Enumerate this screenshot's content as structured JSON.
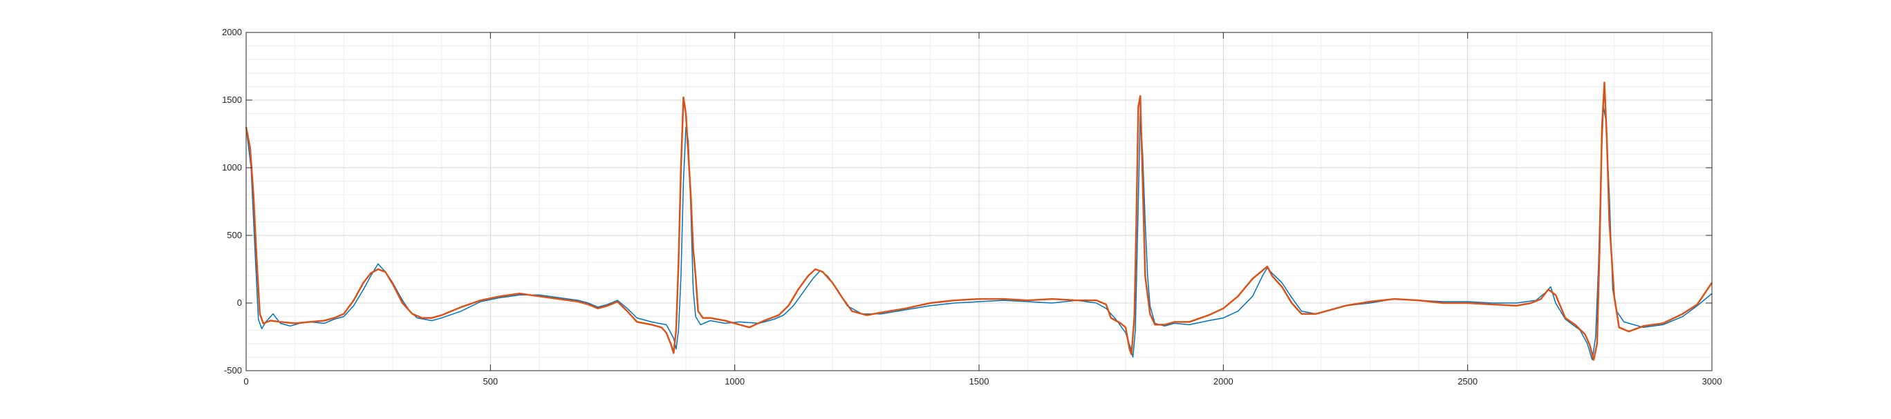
{
  "chart_data": {
    "type": "line",
    "title": "",
    "xlabel": "",
    "ylabel": "",
    "xlim": [
      0,
      3000
    ],
    "ylim": [
      -500,
      2000
    ],
    "xticks": [
      0,
      500,
      1000,
      1500,
      2000,
      2500,
      3000
    ],
    "yticks": [
      -500,
      0,
      500,
      1000,
      1500,
      2000
    ],
    "grid": true,
    "minor_grid": true,
    "legend": "none",
    "series": [
      {
        "color": "#0072BD",
        "points": [
          [
            0,
            1300
          ],
          [
            10,
            1000
          ],
          [
            18,
            400
          ],
          [
            25,
            -120
          ],
          [
            32,
            -190
          ],
          [
            40,
            -140
          ],
          [
            55,
            -80
          ],
          [
            70,
            -150
          ],
          [
            90,
            -170
          ],
          [
            110,
            -150
          ],
          [
            130,
            -140
          ],
          [
            160,
            -150
          ],
          [
            180,
            -120
          ],
          [
            200,
            -100
          ],
          [
            220,
            -20
          ],
          [
            240,
            100
          ],
          [
            255,
            200
          ],
          [
            270,
            290
          ],
          [
            285,
            230
          ],
          [
            300,
            150
          ],
          [
            320,
            20
          ],
          [
            335,
            -60
          ],
          [
            350,
            -110
          ],
          [
            380,
            -130
          ],
          [
            400,
            -110
          ],
          [
            440,
            -60
          ],
          [
            480,
            10
          ],
          [
            520,
            40
          ],
          [
            560,
            60
          ],
          [
            600,
            60
          ],
          [
            640,
            40
          ],
          [
            680,
            20
          ],
          [
            700,
            0
          ],
          [
            720,
            -30
          ],
          [
            740,
            -10
          ],
          [
            760,
            20
          ],
          [
            780,
            -40
          ],
          [
            800,
            -110
          ],
          [
            830,
            -140
          ],
          [
            860,
            -160
          ],
          [
            875,
            -260
          ],
          [
            880,
            -340
          ],
          [
            885,
            -200
          ],
          [
            890,
            200
          ],
          [
            895,
            900
          ],
          [
            900,
            1300
          ],
          [
            905,
            1200
          ],
          [
            910,
            700
          ],
          [
            915,
            100
          ],
          [
            920,
            -100
          ],
          [
            930,
            -160
          ],
          [
            950,
            -130
          ],
          [
            980,
            -150
          ],
          [
            1010,
            -140
          ],
          [
            1050,
            -150
          ],
          [
            1080,
            -120
          ],
          [
            1100,
            -90
          ],
          [
            1120,
            -20
          ],
          [
            1140,
            80
          ],
          [
            1160,
            180
          ],
          [
            1175,
            240
          ],
          [
            1190,
            200
          ],
          [
            1210,
            100
          ],
          [
            1230,
            -20
          ],
          [
            1260,
            -80
          ],
          [
            1300,
            -80
          ],
          [
            1350,
            -50
          ],
          [
            1400,
            -20
          ],
          [
            1450,
            0
          ],
          [
            1500,
            10
          ],
          [
            1550,
            20
          ],
          [
            1600,
            10
          ],
          [
            1650,
            0
          ],
          [
            1700,
            20
          ],
          [
            1740,
            0
          ],
          [
            1760,
            -40
          ],
          [
            1780,
            -120
          ],
          [
            1790,
            -170
          ],
          [
            1800,
            -220
          ],
          [
            1810,
            -330
          ],
          [
            1815,
            -400
          ],
          [
            1820,
            -200
          ],
          [
            1825,
            600
          ],
          [
            1830,
            1400
          ],
          [
            1835,
            1100
          ],
          [
            1840,
            600
          ],
          [
            1845,
            200
          ],
          [
            1850,
            -20
          ],
          [
            1860,
            -150
          ],
          [
            1880,
            -170
          ],
          [
            1900,
            -150
          ],
          [
            1930,
            -160
          ],
          [
            1970,
            -130
          ],
          [
            2000,
            -110
          ],
          [
            2030,
            -60
          ],
          [
            2060,
            50
          ],
          [
            2080,
            200
          ],
          [
            2090,
            260
          ],
          [
            2100,
            220
          ],
          [
            2120,
            150
          ],
          [
            2140,
            40
          ],
          [
            2160,
            -60
          ],
          [
            2190,
            -80
          ],
          [
            2250,
            -20
          ],
          [
            2300,
            0
          ],
          [
            2350,
            30
          ],
          [
            2400,
            20
          ],
          [
            2450,
            10
          ],
          [
            2500,
            10
          ],
          [
            2550,
            0
          ],
          [
            2600,
            0
          ],
          [
            2640,
            20
          ],
          [
            2660,
            80
          ],
          [
            2670,
            120
          ],
          [
            2680,
            0
          ],
          [
            2700,
            -120
          ],
          [
            2730,
            -200
          ],
          [
            2745,
            -300
          ],
          [
            2755,
            -420
          ],
          [
            2762,
            -250
          ],
          [
            2768,
            300
          ],
          [
            2773,
            1000
          ],
          [
            2778,
            1450
          ],
          [
            2783,
            1350
          ],
          [
            2790,
            800
          ],
          [
            2797,
            100
          ],
          [
            2805,
            -60
          ],
          [
            2820,
            -140
          ],
          [
            2860,
            -180
          ],
          [
            2900,
            -160
          ],
          [
            2940,
            -100
          ],
          [
            2970,
            -20
          ],
          [
            3000,
            70
          ]
        ]
      },
      {
        "color": "#D95319",
        "points": [
          [
            0,
            1300
          ],
          [
            8,
            1150
          ],
          [
            15,
            800
          ],
          [
            22,
            300
          ],
          [
            28,
            -80
          ],
          [
            35,
            -150
          ],
          [
            50,
            -130
          ],
          [
            70,
            -140
          ],
          [
            100,
            -150
          ],
          [
            130,
            -140
          ],
          [
            160,
            -130
          ],
          [
            180,
            -110
          ],
          [
            200,
            -80
          ],
          [
            220,
            20
          ],
          [
            240,
            150
          ],
          [
            255,
            220
          ],
          [
            270,
            250
          ],
          [
            285,
            230
          ],
          [
            300,
            140
          ],
          [
            320,
            0
          ],
          [
            340,
            -80
          ],
          [
            360,
            -110
          ],
          [
            380,
            -110
          ],
          [
            400,
            -90
          ],
          [
            440,
            -30
          ],
          [
            480,
            20
          ],
          [
            520,
            50
          ],
          [
            560,
            70
          ],
          [
            600,
            50
          ],
          [
            640,
            30
          ],
          [
            680,
            10
          ],
          [
            700,
            -10
          ],
          [
            720,
            -40
          ],
          [
            740,
            -20
          ],
          [
            760,
            10
          ],
          [
            780,
            -60
          ],
          [
            800,
            -140
          ],
          [
            830,
            -160
          ],
          [
            850,
            -180
          ],
          [
            860,
            -220
          ],
          [
            870,
            -310
          ],
          [
            875,
            -370
          ],
          [
            880,
            -200
          ],
          [
            885,
            300
          ],
          [
            890,
            1000
          ],
          [
            895,
            1520
          ],
          [
            900,
            1400
          ],
          [
            905,
            1100
          ],
          [
            910,
            800
          ],
          [
            915,
            400
          ],
          [
            920,
            200
          ],
          [
            925,
            -60
          ],
          [
            935,
            -110
          ],
          [
            950,
            -110
          ],
          [
            980,
            -130
          ],
          [
            1000,
            -150
          ],
          [
            1030,
            -180
          ],
          [
            1060,
            -130
          ],
          [
            1090,
            -90
          ],
          [
            1110,
            -20
          ],
          [
            1130,
            100
          ],
          [
            1150,
            200
          ],
          [
            1165,
            250
          ],
          [
            1180,
            230
          ],
          [
            1200,
            150
          ],
          [
            1220,
            40
          ],
          [
            1240,
            -60
          ],
          [
            1270,
            -90
          ],
          [
            1300,
            -70
          ],
          [
            1350,
            -40
          ],
          [
            1400,
            0
          ],
          [
            1450,
            20
          ],
          [
            1500,
            30
          ],
          [
            1550,
            30
          ],
          [
            1600,
            20
          ],
          [
            1650,
            30
          ],
          [
            1700,
            20
          ],
          [
            1740,
            20
          ],
          [
            1760,
            -10
          ],
          [
            1770,
            -110
          ],
          [
            1790,
            -150
          ],
          [
            1800,
            -180
          ],
          [
            1808,
            -340
          ],
          [
            1812,
            -380
          ],
          [
            1818,
            -100
          ],
          [
            1822,
            600
          ],
          [
            1826,
            1450
          ],
          [
            1830,
            1530
          ],
          [
            1835,
            900
          ],
          [
            1840,
            200
          ],
          [
            1850,
            -80
          ],
          [
            1860,
            -160
          ],
          [
            1880,
            -160
          ],
          [
            1900,
            -140
          ],
          [
            1930,
            -140
          ],
          [
            1970,
            -90
          ],
          [
            2000,
            -40
          ],
          [
            2030,
            50
          ],
          [
            2060,
            180
          ],
          [
            2080,
            240
          ],
          [
            2090,
            270
          ],
          [
            2100,
            200
          ],
          [
            2120,
            120
          ],
          [
            2140,
            0
          ],
          [
            2160,
            -80
          ],
          [
            2190,
            -80
          ],
          [
            2250,
            -20
          ],
          [
            2300,
            10
          ],
          [
            2350,
            30
          ],
          [
            2400,
            20
          ],
          [
            2450,
            0
          ],
          [
            2500,
            0
          ],
          [
            2550,
            -10
          ],
          [
            2600,
            -20
          ],
          [
            2630,
            0
          ],
          [
            2650,
            30
          ],
          [
            2665,
            100
          ],
          [
            2680,
            60
          ],
          [
            2700,
            -110
          ],
          [
            2720,
            -160
          ],
          [
            2740,
            -230
          ],
          [
            2750,
            -310
          ],
          [
            2758,
            -420
          ],
          [
            2765,
            -300
          ],
          [
            2770,
            400
          ],
          [
            2775,
            1300
          ],
          [
            2780,
            1630
          ],
          [
            2785,
            1200
          ],
          [
            2790,
            600
          ],
          [
            2800,
            50
          ],
          [
            2810,
            -180
          ],
          [
            2830,
            -210
          ],
          [
            2860,
            -170
          ],
          [
            2900,
            -150
          ],
          [
            2940,
            -80
          ],
          [
            2970,
            -10
          ],
          [
            3000,
            150
          ]
        ]
      }
    ]
  }
}
